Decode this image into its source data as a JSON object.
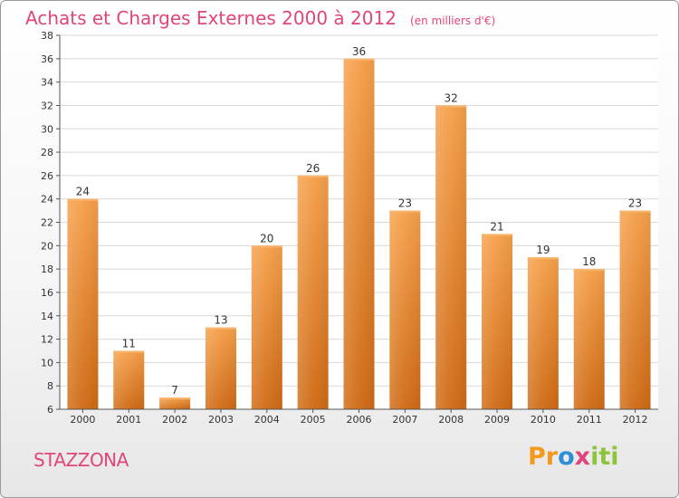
{
  "title": "Achats et Charges Externes 2000 à 2012",
  "unit_label": "(en milliers d'€)",
  "commune": "STAZZONA",
  "logo": {
    "parts": [
      "Pr",
      "o",
      "x",
      "iti"
    ],
    "icon": "proxiti-logo"
  },
  "colors": {
    "title": "#e0457b",
    "bar_top": "#f6a04a",
    "bar_bottom": "#cf6a14",
    "grid": "#d8d8d8"
  },
  "chart_data": {
    "type": "bar",
    "title": "Achats et Charges Externes 2000 à 2012",
    "subtitle": "(en milliers d'€)",
    "categories": [
      "2000",
      "2001",
      "2002",
      "2003",
      "2004",
      "2005",
      "2006",
      "2007",
      "2008",
      "2009",
      "2010",
      "2011",
      "2012"
    ],
    "values": [
      24,
      11,
      7,
      13,
      20,
      26,
      36,
      23,
      32,
      21,
      19,
      18,
      23
    ],
    "ylim": [
      6,
      38
    ],
    "yticks": [
      6,
      8,
      10,
      12,
      14,
      16,
      18,
      20,
      22,
      24,
      26,
      28,
      30,
      32,
      34,
      36,
      38
    ],
    "grid": true,
    "data_labels": true,
    "legend": "none"
  }
}
